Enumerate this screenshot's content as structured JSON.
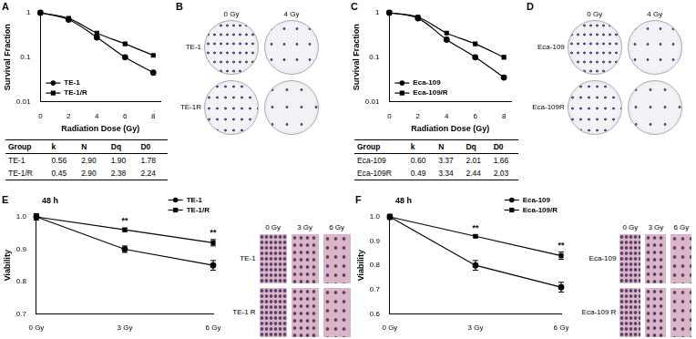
{
  "chart_data": [
    {
      "panel": "A",
      "type": "line",
      "x_label": "Radiation Dose (Gy)",
      "y_label": "Survival Fraction",
      "x": [
        0,
        2,
        4,
        6,
        8
      ],
      "series": [
        {
          "name": "TE-1",
          "color": "#000000",
          "marker": "circle",
          "line_style": "solid",
          "values": [
            1,
            0.7,
            0.28,
            0.1,
            0.045
          ]
        },
        {
          "name": "TE-1/R",
          "color": "#000000",
          "marker": "square",
          "line_style": "solid",
          "values": [
            1,
            0.75,
            0.35,
            0.2,
            0.11
          ]
        }
      ],
      "xlim": [
        0,
        8.5
      ],
      "xticks": [
        0,
        2,
        4,
        6,
        8
      ],
      "ylim": [
        0.01,
        1
      ],
      "yticks": [
        0.01,
        0.1,
        1
      ],
      "log": "y",
      "grid": false,
      "legend": "lower left",
      "table": {
        "header": [
          "Group",
          "k",
          "N",
          "Dq",
          "D0"
        ],
        "rows": [
          [
            "TE-1",
            "0.56",
            "2.90",
            "1.90",
            "1.78"
          ],
          [
            "TE-1/R",
            "0.45",
            "2.90",
            "2.38",
            "2.24"
          ]
        ]
      }
    },
    {
      "panel": "C",
      "type": "line",
      "x_label": "Radiation Dose (Gy)",
      "y_label": "Survival Fraction",
      "x": [
        0,
        2,
        4,
        6,
        8
      ],
      "series": [
        {
          "name": "Eca-109",
          "color": "#000000",
          "marker": "circle",
          "line_style": "solid",
          "values": [
            1,
            0.75,
            0.25,
            0.1,
            0.035
          ]
        },
        {
          "name": "Eca-109/R",
          "color": "#000000",
          "marker": "square",
          "line_style": "solid",
          "values": [
            1,
            0.8,
            0.35,
            0.2,
            0.1
          ]
        }
      ],
      "xlim": [
        0,
        8.5
      ],
      "xticks": [
        0,
        2,
        4,
        6,
        8
      ],
      "ylim": [
        0.01,
        1
      ],
      "yticks": [
        0.01,
        0.1,
        1
      ],
      "log": "y",
      "grid": false,
      "legend": "lower left",
      "table": {
        "header": [
          "Group",
          "k",
          "N",
          "Dq",
          "D0"
        ],
        "rows": [
          [
            "Eca-109",
            "0.60",
            "3.37",
            "2.01",
            "1.66"
          ],
          [
            "Eca-109R",
            "0.49",
            "3.34",
            "2.44",
            "2.03"
          ]
        ]
      }
    },
    {
      "panel": "E",
      "type": "line",
      "title": "48 h",
      "y_label": "Viability",
      "categories": [
        "0 Gy",
        "3 Gy",
        "6 Gy"
      ],
      "series": [
        {
          "name": "TE-1",
          "color": "#000000",
          "marker": "circle",
          "line_style": "solid",
          "values": [
            1,
            0.9,
            0.85
          ],
          "errors": [
            0.01,
            0.01,
            0.015
          ]
        },
        {
          "name": "TE-1/R",
          "color": "#000000",
          "marker": "square",
          "line_style": "solid",
          "values": [
            1,
            0.96,
            0.92
          ],
          "errors": [
            0.01,
            0.005,
            0.01
          ]
        }
      ],
      "ylim": [
        0.7,
        1
      ],
      "yticks": [
        0.7,
        0.8,
        0.9,
        {
          "value": 1,
          "label": "1.0"
        }
      ],
      "grid": false,
      "legend": "top",
      "annotations": [
        {
          "text": "**",
          "x": "3 Gy"
        },
        {
          "text": "**",
          "x": "6 Gy"
        }
      ],
      "images": {
        "columns": [
          "0 Gy",
          "3 Gy",
          "6 Gy"
        ],
        "rows": [
          "TE-1",
          "TE-1 R"
        ]
      }
    },
    {
      "panel": "F",
      "type": "line",
      "title": "48 h",
      "y_label": "Viability",
      "categories": [
        "0 Gy",
        "3 Gy",
        "6 Gy"
      ],
      "series": [
        {
          "name": "Eca-109",
          "color": "#000000",
          "marker": "circle",
          "line_style": "solid",
          "values": [
            1,
            0.8,
            0.71
          ],
          "errors": [
            0.01,
            0.02,
            0.02
          ]
        },
        {
          "name": "Eca-109/R",
          "color": "#000000",
          "marker": "square",
          "line_style": "solid",
          "values": [
            1,
            0.92,
            0.84
          ],
          "errors": [
            0.01,
            0.005,
            0.015
          ]
        }
      ],
      "ylim": [
        0.6,
        1
      ],
      "yticks": [
        0.6,
        0.7,
        0.8,
        0.9,
        {
          "value": 1,
          "label": "1.0"
        }
      ],
      "grid": false,
      "legend": "top",
      "annotations": [
        {
          "text": "**",
          "x": "3 Gy"
        },
        {
          "text": "**",
          "x": "6 Gy"
        }
      ],
      "images": {
        "columns": [
          "0 Gy",
          "3 Gy",
          "6 Gy"
        ],
        "rows": [
          "Eca-109",
          "Eca-109 R"
        ]
      }
    }
  ],
  "images": [
    {
      "panel": "B",
      "columns": [
        "0 Gy",
        "4 Gy"
      ],
      "rows": [
        "TE-1",
        "TE-1R"
      ]
    },
    {
      "panel": "D",
      "columns": [
        "0 Gy",
        "4 Gy"
      ],
      "rows": [
        "Eca-109",
        "Eca-109R"
      ]
    }
  ]
}
